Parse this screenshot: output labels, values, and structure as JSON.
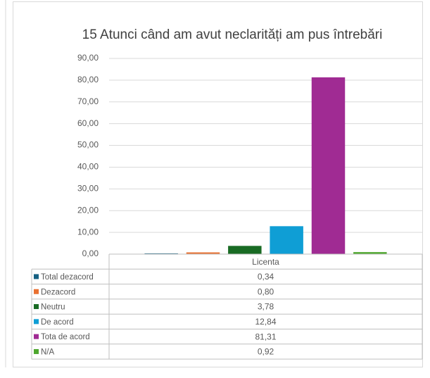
{
  "chart_data": {
    "type": "bar",
    "title": "15 Atunci când am avut neclarități am pus întrebări",
    "categories": [
      "Licenta"
    ],
    "series": [
      {
        "name": "Total dezacord",
        "color": "#156082",
        "values": [
          0.34
        ],
        "value_labels": [
          "0,34"
        ]
      },
      {
        "name": "Dezacord",
        "color": "#E97132",
        "values": [
          0.8
        ],
        "value_labels": [
          "0,80"
        ]
      },
      {
        "name": "Neutru",
        "color": "#196B24",
        "values": [
          3.78
        ],
        "value_labels": [
          "3,78"
        ]
      },
      {
        "name": "De acord",
        "color": "#0F9ED5",
        "values": [
          12.84
        ],
        "value_labels": [
          "12,84"
        ]
      },
      {
        "name": "Tota de acord",
        "color": "#A02B93",
        "values": [
          81.31
        ],
        "value_labels": [
          "81,31"
        ]
      },
      {
        "name": "N/A",
        "color": "#4EA72E",
        "values": [
          0.92
        ],
        "value_labels": [
          "0,92"
        ]
      }
    ],
    "ylim": [
      0,
      90
    ],
    "yticks": [
      {
        "value": 0,
        "label": "0,00"
      },
      {
        "value": 10,
        "label": "10,00"
      },
      {
        "value": 20,
        "label": "20,00"
      },
      {
        "value": 30,
        "label": "30,00"
      },
      {
        "value": 40,
        "label": "40,00"
      },
      {
        "value": 50,
        "label": "50,00"
      },
      {
        "value": 60,
        "label": "60,00"
      },
      {
        "value": 70,
        "label": "70,00"
      },
      {
        "value": 80,
        "label": "80,00"
      },
      {
        "value": 90,
        "label": "90,00"
      }
    ],
    "grid": true
  }
}
